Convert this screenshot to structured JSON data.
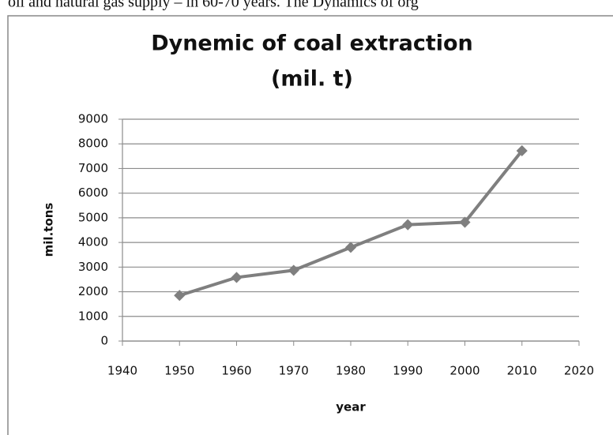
{
  "header_text": "oil and natural gas supply – in 60-70 years. The Dynamics of org",
  "chart_data": {
    "type": "line",
    "title": [
      "Dynemic of coal extraction",
      "(mil. t)"
    ],
    "x_label": "year",
    "y_label": "mil.tons",
    "x": [
      1950,
      1960,
      1970,
      1980,
      1990,
      2000,
      2010
    ],
    "values": [
      1850,
      2580,
      2870,
      3800,
      4720,
      4820,
      7720
    ],
    "color": "#7f7f7f",
    "xlim": [
      1940,
      2020
    ],
    "xticks": [
      1940,
      1950,
      1960,
      1970,
      1980,
      1990,
      2000,
      2010,
      2020
    ],
    "ylim": [
      0,
      9000
    ],
    "yticks": [
      0,
      1000,
      2000,
      3000,
      4000,
      5000,
      6000,
      7000,
      8000,
      9000
    ],
    "grid": true
  }
}
